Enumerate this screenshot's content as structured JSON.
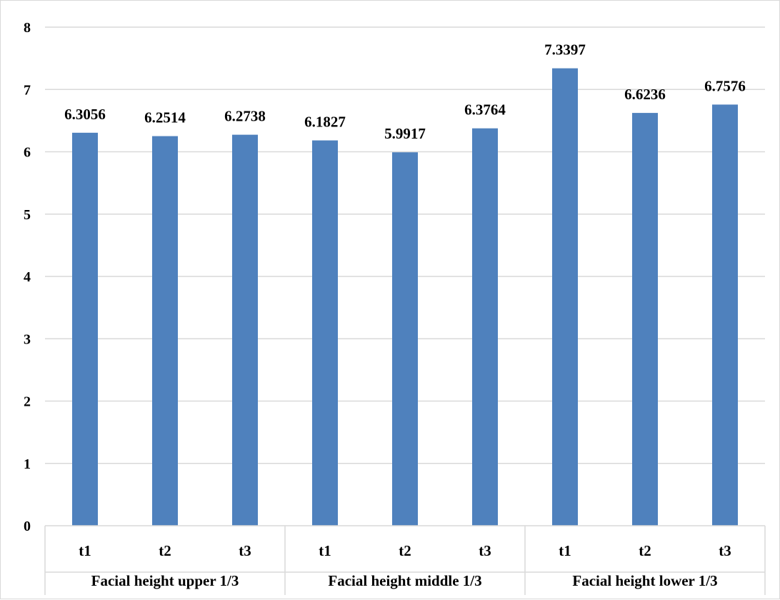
{
  "chart_data": {
    "type": "bar",
    "groups": [
      {
        "label": "Facial height upper 1/3",
        "categories": [
          "t1",
          "t2",
          "t3"
        ],
        "values": [
          6.3056,
          6.2514,
          6.2738
        ]
      },
      {
        "label": "Facial height middle 1/3",
        "categories": [
          "t1",
          "t2",
          "t3"
        ],
        "values": [
          6.1827,
          5.9917,
          6.3764
        ]
      },
      {
        "label": "Facial height lower 1/3",
        "categories": [
          "t1",
          "t2",
          "t3"
        ],
        "values": [
          7.3397,
          6.6236,
          6.7576
        ]
      }
    ],
    "data_labels": [
      "6.3056",
      "6.2514",
      "6.2738",
      "6.1827",
      "5.9917",
      "6.3764",
      "7.3397",
      "6.6236",
      "6.7576"
    ],
    "y_ticks": [
      "0",
      "1",
      "2",
      "3",
      "4",
      "5",
      "6",
      "7",
      "8"
    ],
    "ylim": [
      0,
      8
    ],
    "grid": true,
    "legend": "none",
    "bar_color": "#4f81bd",
    "grid_color": "#d9d9d9",
    "title": "",
    "xlabel": "",
    "ylabel": ""
  }
}
